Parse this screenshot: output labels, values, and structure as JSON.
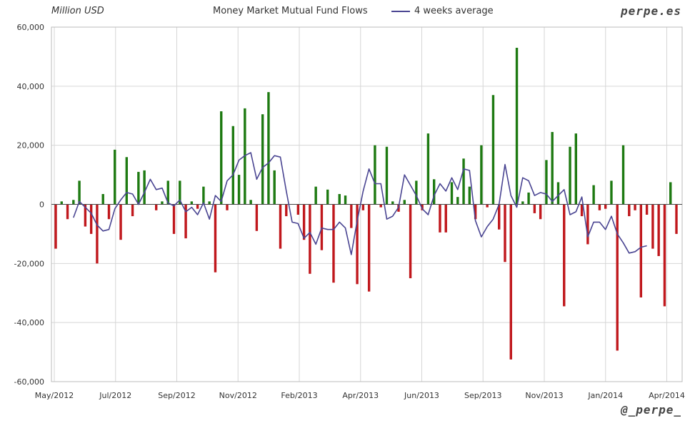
{
  "header": {
    "unit_label": "Million USD",
    "title": "Money Market Mutual Fund Flows",
    "legend_line": "4 weeks average",
    "brand_top": "perpe.es",
    "brand_bottom": "@_perpe_"
  },
  "colors": {
    "positive": "#1e7a12",
    "negative": "#c0181d",
    "average": "#4a4592",
    "grid": "#d6d6d6"
  },
  "chart_data": {
    "type": "bar",
    "ylim": [
      -60000,
      60000
    ],
    "yticks": [
      60000,
      40000,
      20000,
      0,
      -20000,
      -40000,
      -60000
    ],
    "ytick_labels": [
      "60,000",
      "40,000",
      "20,000",
      "0",
      "-20,000",
      "-40,000",
      "-60,000"
    ],
    "xtick_labels": [
      "May/2012",
      "Jul/2012",
      "Sep/2012",
      "Nov/2012",
      "Feb/2013",
      "Apr/2013",
      "Jun/2013",
      "Sep/2013",
      "Nov/2013",
      "Jan/2014",
      "Apr/2014"
    ],
    "grid": true,
    "series": [
      {
        "kind": "bar",
        "values": [
          -15000,
          1000,
          -5000,
          1500,
          8000,
          -7500,
          -10000,
          -20000,
          3500,
          -5000,
          18500,
          -12000,
          16000,
          -4000,
          11000,
          11500,
          0,
          -2000,
          1000,
          8000,
          -10000,
          8000,
          -11500,
          1000,
          -1500,
          6000,
          1000,
          -23000,
          31500,
          -2000,
          26500,
          10000,
          32500,
          1500,
          -9000,
          30500,
          38000,
          11500,
          -15000,
          -4000,
          0,
          -3500,
          -12000,
          -23500,
          6000,
          -15500,
          5000,
          -26500,
          3500,
          3000,
          -8000,
          -27000,
          -2000,
          -29500,
          20000,
          -1000,
          19500,
          1000,
          -2500,
          1500,
          -25000,
          8000,
          -2000,
          24000,
          8500,
          -9500,
          -9500,
          7500,
          2500,
          15500,
          6000,
          -5000,
          20000,
          -1000,
          37000,
          -8500,
          -19500,
          -52500,
          53000,
          1000,
          4000,
          -3000,
          -5000,
          15000,
          24500,
          7500,
          -34500,
          19500,
          24000,
          -4000,
          -13500,
          6500,
          -2000,
          -1500,
          8000,
          -49500,
          20000,
          -4000,
          -2000,
          -31500,
          -3500,
          -15000,
          -17500,
          -34500,
          7500,
          -10000
        ]
      },
      {
        "kind": "line",
        "name": "4 weeks average",
        "values": [
          -4500,
          1000,
          -1000,
          -3000,
          -7000,
          -9000,
          -8500,
          -1500,
          1500,
          4000,
          3500,
          0,
          4000,
          8500,
          5000,
          5500,
          500,
          -500,
          1500,
          -2500,
          -1000,
          -3500,
          500,
          -5000,
          3000,
          1000,
          8000,
          10000,
          15000,
          16500,
          17500,
          8500,
          12500,
          14000,
          16500,
          16000,
          4500,
          -6000,
          -6500,
          -11500,
          -9500,
          -13500,
          -8000,
          -8500,
          -8500,
          -6000,
          -8000,
          -17000,
          -5500,
          4500,
          12000,
          7000,
          7000,
          -5000,
          -4000,
          -1000,
          10000,
          6500,
          3000,
          -1500,
          -3500,
          3000,
          7000,
          4500,
          9000,
          5000,
          12000,
          11500,
          -5500,
          -11000,
          -7500,
          -5000,
          0,
          13500,
          3000,
          -1000,
          9000,
          8000,
          3000,
          4000,
          3500,
          1000,
          3000,
          5000,
          -3500,
          -2500,
          2500,
          -11000,
          -6000,
          -6000,
          -8500,
          -4000,
          -10000,
          -13000,
          -16500,
          -16000,
          -14500,
          -14000
        ]
      }
    ]
  }
}
